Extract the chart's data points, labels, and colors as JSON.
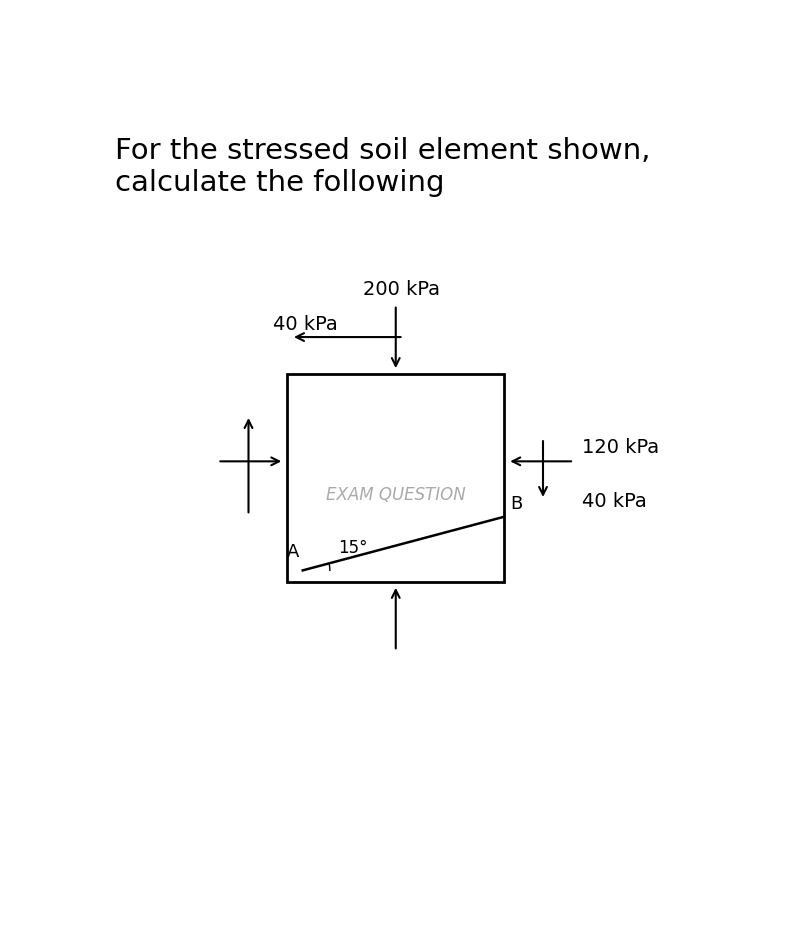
{
  "title_line1": "For the stressed soil element shown,",
  "title_line2": "calculate the following",
  "stress_top_normal": "200 kPa",
  "stress_top_shear": "40 kPa",
  "stress_right_normal": "120 kPa",
  "stress_right_shear": "40 kPa",
  "angle_label": "15°",
  "point_A": "A",
  "point_B": "B",
  "watermark": "EXAM QUESTION",
  "bg_color": "#ffffff",
  "box_color": "#000000",
  "text_color": "#000000",
  "title_fontsize": 21,
  "label_fontsize": 14,
  "watermark_fontsize": 12
}
